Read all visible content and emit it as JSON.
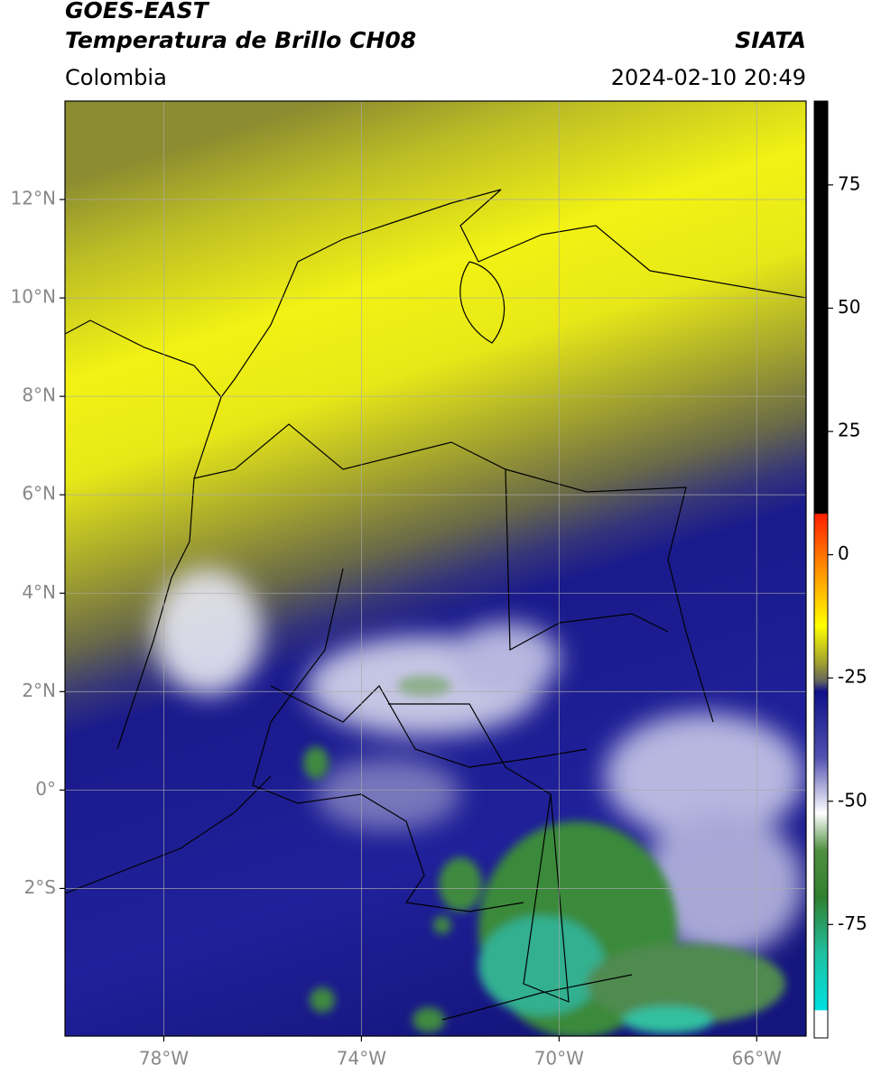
{
  "header": {
    "title": "GOES-EAST",
    "subtitle": "Temperatura de Brillo CH08",
    "source": "SIATA",
    "region": "Colombia",
    "datetime": "2024-02-10 20:49"
  },
  "map": {
    "xlim": [
      -80,
      -65
    ],
    "ylim": [
      -5,
      14
    ],
    "xticks": [
      {
        "value": -78,
        "label": "78°W"
      },
      {
        "value": -74,
        "label": "74°W"
      },
      {
        "value": -70,
        "label": "70°W"
      },
      {
        "value": -66,
        "label": "66°W"
      }
    ],
    "yticks": [
      {
        "value": 12,
        "label": "12°N"
      },
      {
        "value": 10,
        "label": "10°N"
      },
      {
        "value": 8,
        "label": "8°N"
      },
      {
        "value": 6,
        "label": "6°N"
      },
      {
        "value": 4,
        "label": "4°N"
      },
      {
        "value": 2,
        "label": "2°N"
      },
      {
        "value": 0,
        "label": "0°"
      },
      {
        "value": -2,
        "label": "2°S"
      }
    ],
    "grid": true
  },
  "colorbar": {
    "lim": [
      -98,
      92
    ],
    "ticks": [
      75,
      50,
      25,
      0,
      -25,
      -50,
      -75
    ]
  }
}
